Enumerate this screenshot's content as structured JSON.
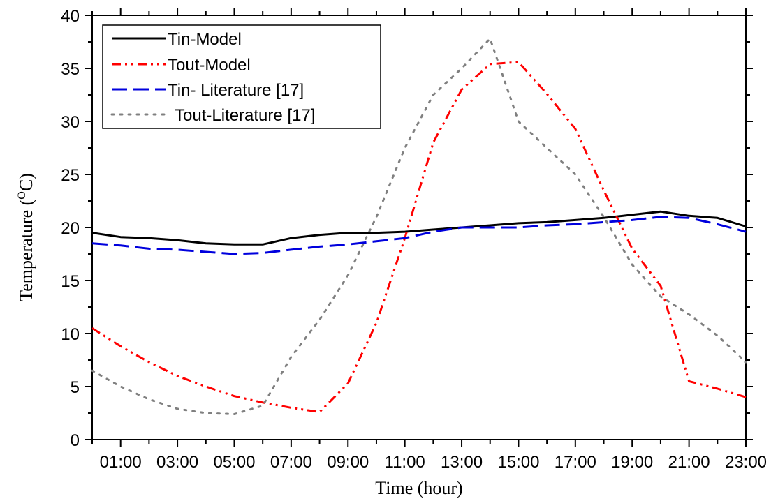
{
  "chart_data": {
    "type": "line",
    "xlabel": "Time (hour)",
    "ylabel_main": "Temperature (",
    "ylabel_sup": "O",
    "ylabel_end": "C)",
    "xlim": [
      0,
      23
    ],
    "ylim": [
      0,
      40
    ],
    "x_ticks": [
      1,
      3,
      5,
      7,
      9,
      11,
      13,
      15,
      17,
      19,
      21,
      23
    ],
    "x_tick_labels": [
      "01:00",
      "03:00",
      "05:00",
      "07:00",
      "09:00",
      "11:00",
      "13:00",
      "15:00",
      "17:00",
      "19:00",
      "21:00",
      "23:00"
    ],
    "y_ticks": [
      0,
      5,
      10,
      15,
      20,
      25,
      30,
      35,
      40
    ],
    "y_tick_labels": [
      "0",
      "5",
      "10",
      "15",
      "20",
      "25",
      "30",
      "35",
      "40"
    ],
    "legend_position": "top-left",
    "series": [
      {
        "name": "Tin-Model",
        "color": "#000000",
        "style": "solid",
        "x": [
          0,
          1,
          2,
          3,
          4,
          5,
          6,
          7,
          8,
          9,
          10,
          11,
          12,
          13,
          14,
          15,
          16,
          17,
          18,
          19,
          20,
          21,
          22,
          23
        ],
        "y": [
          19.5,
          19.1,
          19.0,
          18.8,
          18.5,
          18.4,
          18.4,
          19.0,
          19.3,
          19.5,
          19.5,
          19.6,
          19.8,
          20.0,
          20.2,
          20.4,
          20.5,
          20.7,
          20.9,
          21.2,
          21.5,
          21.1,
          20.9,
          20.1
        ]
      },
      {
        "name": "Tout-Model",
        "color": "#ff0000",
        "style": "dashdotdot",
        "x": [
          0,
          1,
          2,
          3,
          4,
          5,
          6,
          7,
          8,
          9,
          10,
          11,
          12,
          13,
          14,
          15,
          16,
          17,
          18,
          19,
          20,
          21,
          22,
          23
        ],
        "y": [
          10.5,
          8.8,
          7.3,
          6.0,
          5.0,
          4.1,
          3.5,
          3.0,
          2.6,
          5.3,
          11.0,
          19.0,
          28.0,
          33.0,
          35.4,
          35.6,
          32.6,
          29.3,
          23.5,
          18.0,
          14.5,
          5.5,
          4.8,
          4.0
        ]
      },
      {
        "name": "Tin- Literature [17]",
        "color": "#0000dd",
        "style": "dashed",
        "x": [
          0,
          1,
          2,
          3,
          4,
          5,
          6,
          7,
          8,
          9,
          10,
          11,
          12,
          13,
          14,
          15,
          16,
          17,
          18,
          19,
          20,
          21,
          22,
          23
        ],
        "y": [
          18.5,
          18.3,
          18.0,
          17.9,
          17.7,
          17.5,
          17.6,
          17.9,
          18.2,
          18.4,
          18.7,
          19.0,
          19.6,
          20.0,
          20.0,
          20.0,
          20.2,
          20.3,
          20.5,
          20.7,
          21.0,
          20.9,
          20.3,
          19.6
        ]
      },
      {
        "name": "Tout-Literature [17]",
        "color": "#808080",
        "style": "dotted",
        "x": [
          0,
          1,
          2,
          3,
          4,
          5,
          6,
          7,
          8,
          9,
          10,
          11,
          12,
          13,
          14,
          15,
          16,
          17,
          18,
          19,
          20,
          21,
          22,
          23
        ],
        "y": [
          6.5,
          5.0,
          3.8,
          2.9,
          2.5,
          2.4,
          3.2,
          7.8,
          11.3,
          15.5,
          21.0,
          27.5,
          32.5,
          35.0,
          37.8,
          30.0,
          27.5,
          25.0,
          21.0,
          16.5,
          13.5,
          11.8,
          9.8,
          7.3
        ]
      }
    ]
  }
}
